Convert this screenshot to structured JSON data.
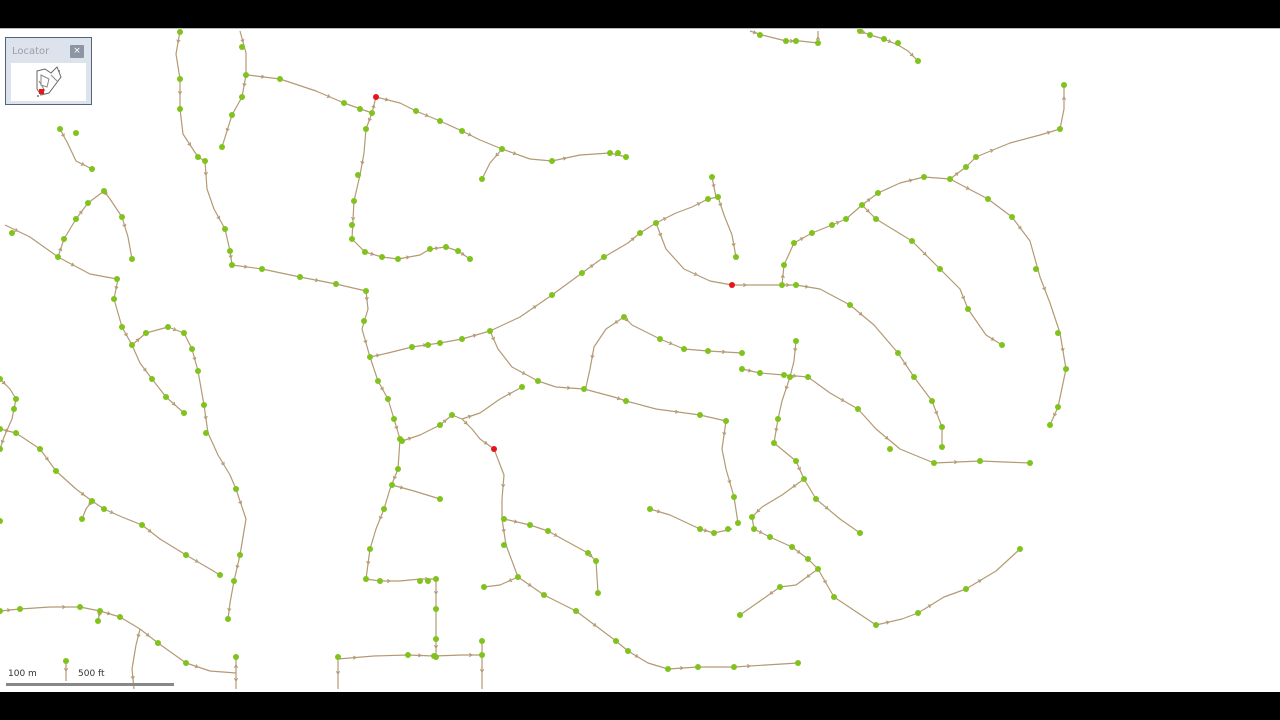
{
  "locator": {
    "title": "Locator",
    "close_glyph": "×"
  },
  "scale_bar": {
    "metric_label": "100 m",
    "imperial_label": "500 ft"
  },
  "colors": {
    "edge": "#b39a73",
    "node": "#7fc31c",
    "selected_node": "#e8141b",
    "map_background": "#ffffff",
    "frame": "#000000"
  }
}
